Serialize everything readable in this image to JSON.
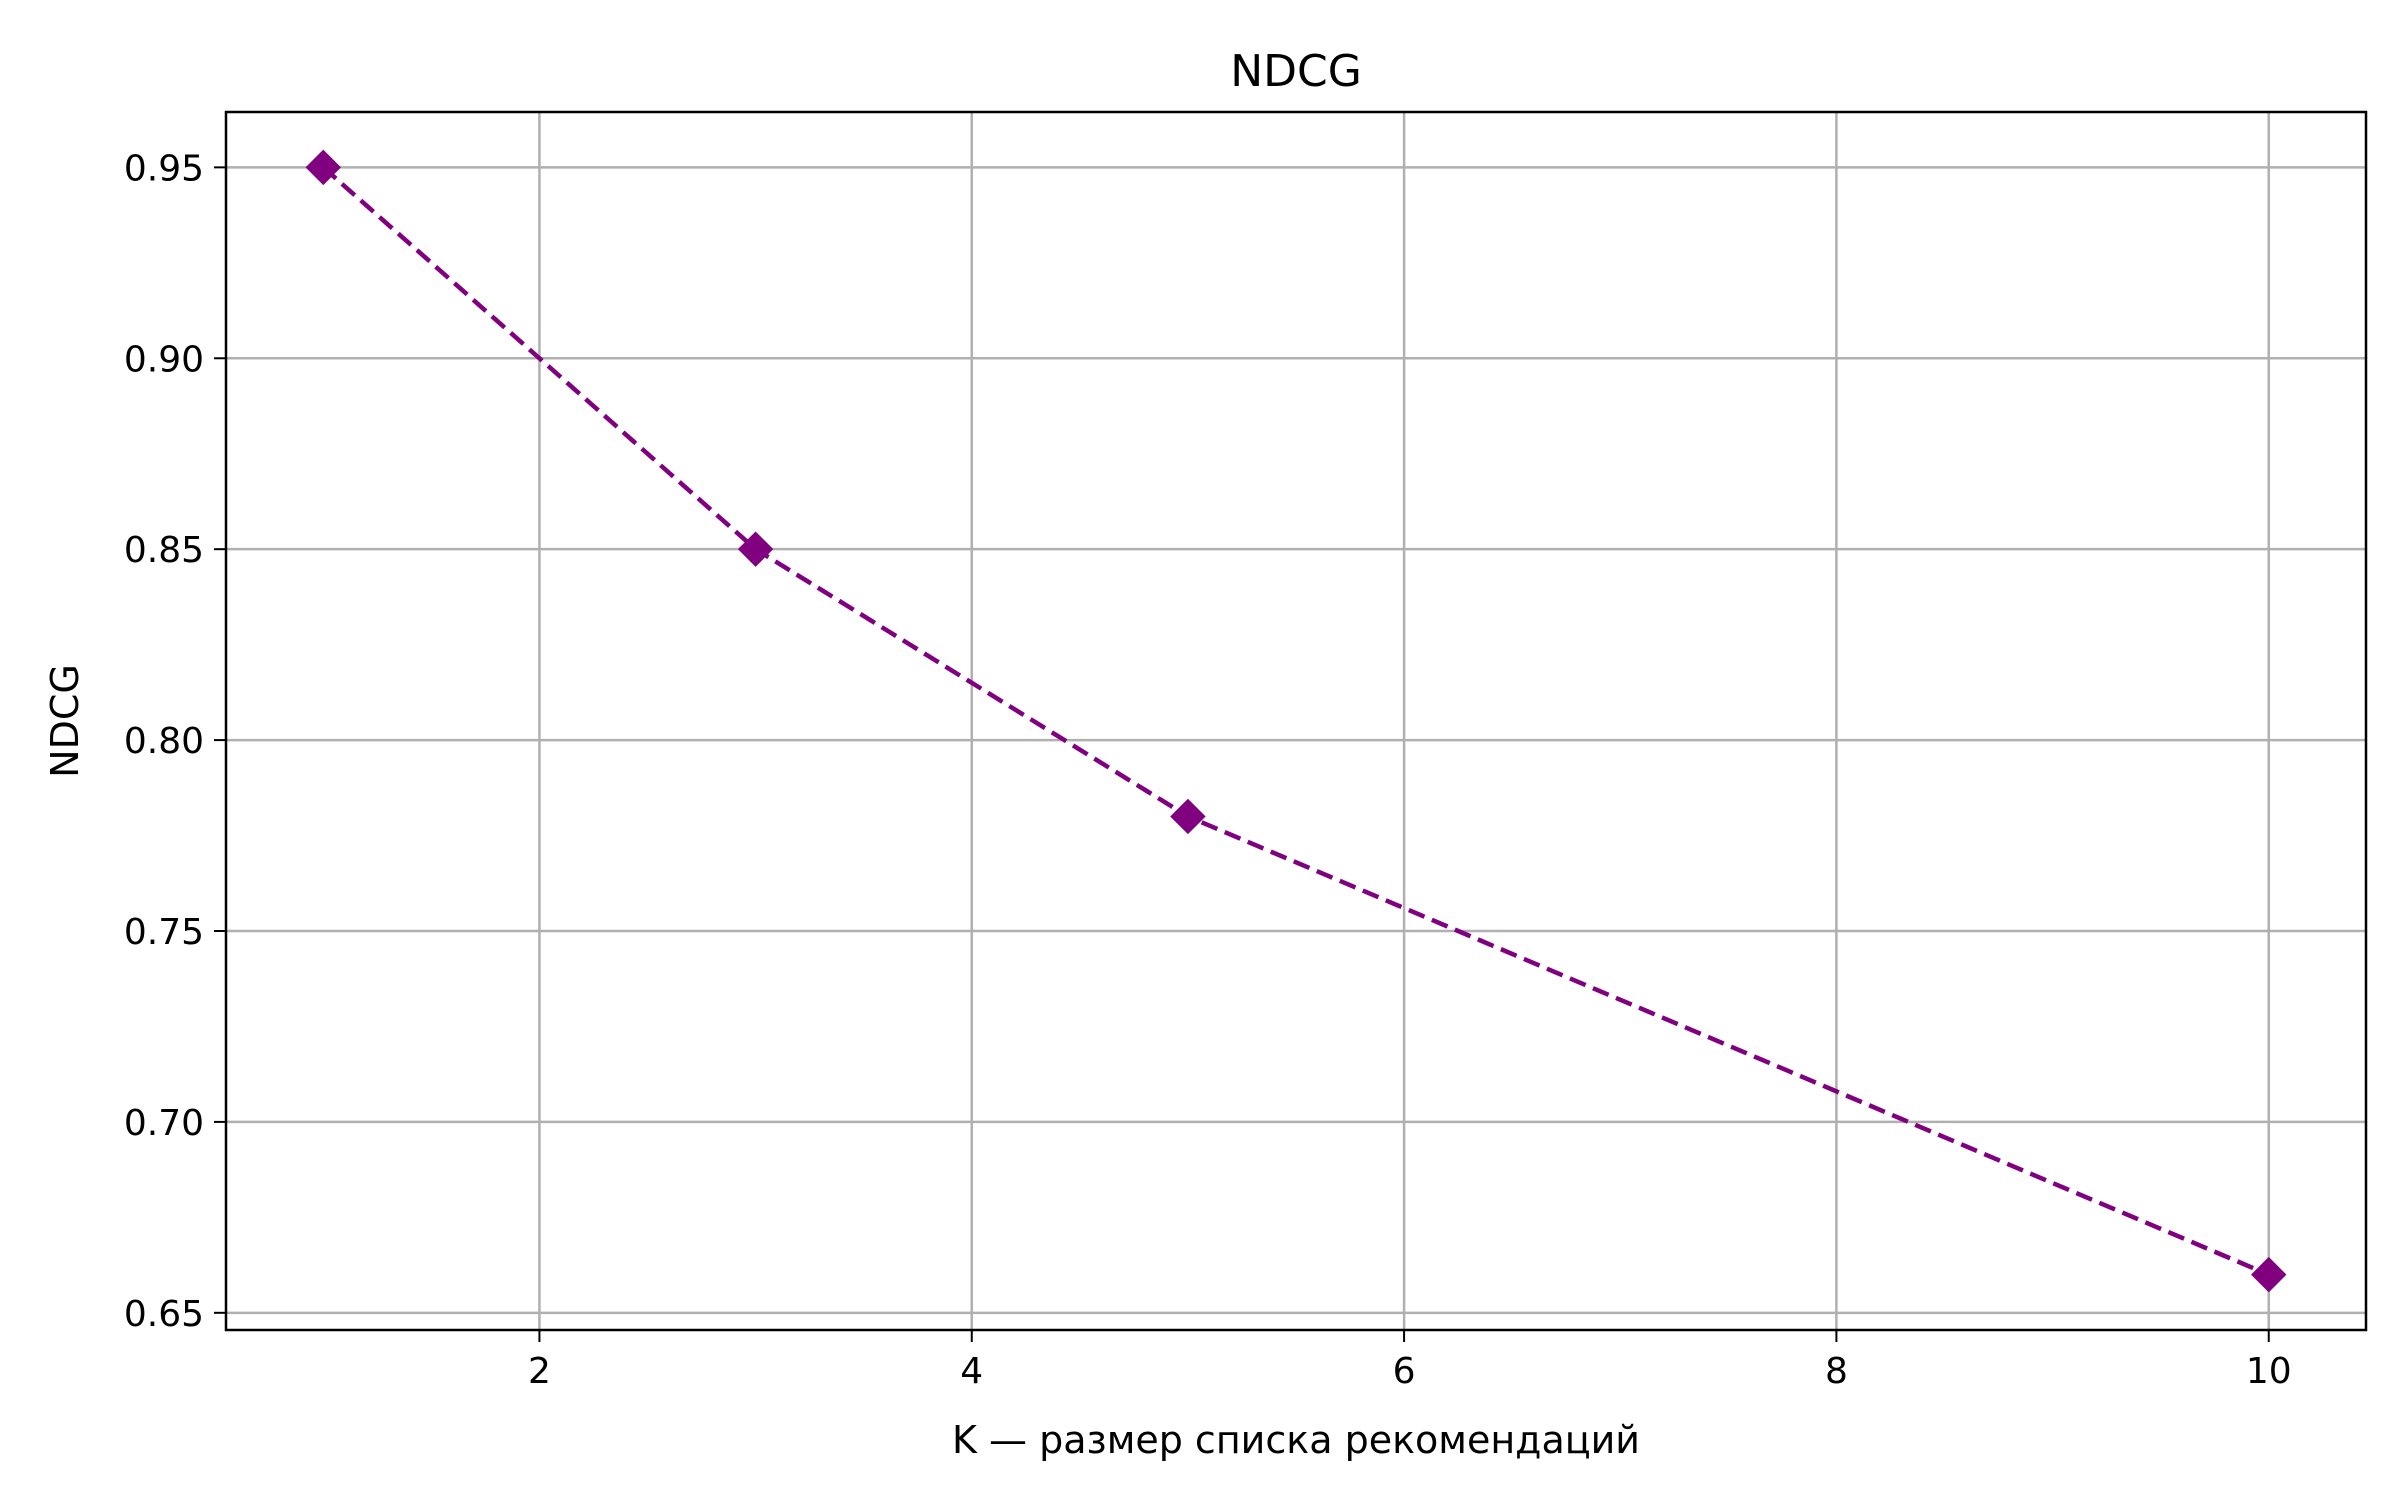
{
  "chart_data": {
    "type": "line",
    "title": "NDCG",
    "xlabel": "K — размер списка рекомендаций",
    "ylabel": "NDCG",
    "x": [
      1,
      3,
      5,
      10
    ],
    "series": [
      {
        "values": [
          0.95,
          0.85,
          0.78,
          0.66
        ],
        "color": "#800080",
        "line_style": "dashed",
        "marker": "diamond"
      }
    ],
    "xlim": [
      0.55,
      10.45
    ],
    "ylim": [
      0.6455,
      0.9645
    ],
    "xticks": [
      {
        "value": 2,
        "label": "2"
      },
      {
        "value": 4,
        "label": "4"
      },
      {
        "value": 6,
        "label": "6"
      },
      {
        "value": 8,
        "label": "8"
      },
      {
        "value": 10,
        "label": "10"
      }
    ],
    "yticks": [
      {
        "value": 0.65,
        "label": "0.65"
      },
      {
        "value": 0.7,
        "label": "0.70"
      },
      {
        "value": 0.75,
        "label": "0.75"
      },
      {
        "value": 0.8,
        "label": "0.80"
      },
      {
        "value": 0.85,
        "label": "0.85"
      },
      {
        "value": 0.9,
        "label": "0.90"
      },
      {
        "value": 0.95,
        "label": "0.95"
      }
    ],
    "grid": true,
    "grid_color": "#b0b0b0",
    "axis_color": "#000000"
  }
}
